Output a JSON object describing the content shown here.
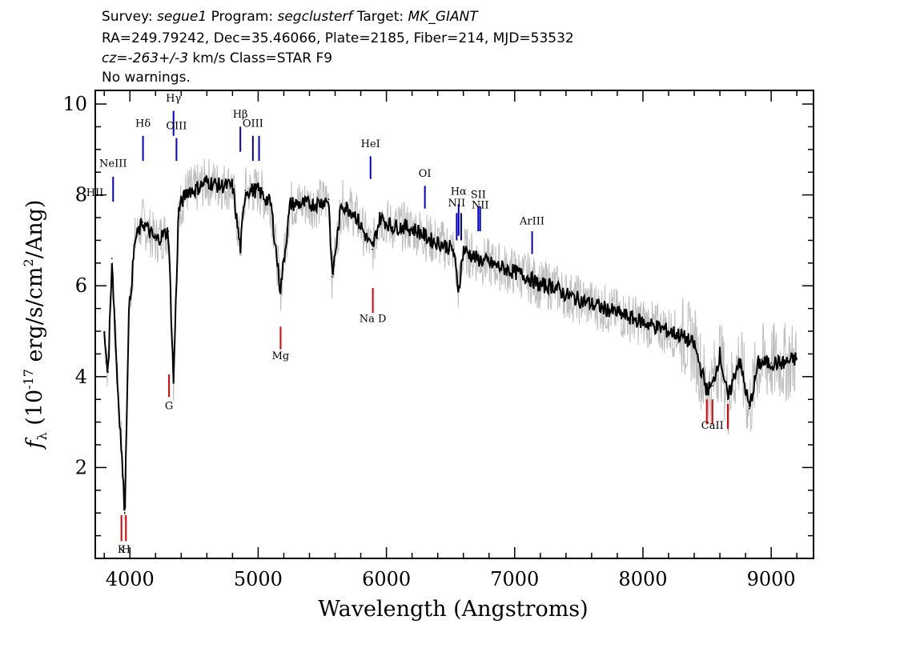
{
  "header": {
    "survey_label": "Survey:",
    "survey": "segue1",
    "program_label": "Program:",
    "program": "segclusterf",
    "target_label": "Target:",
    "target": "MK_GIANT",
    "line2": "RA=249.79242, Dec=35.46066, Plate=2185, Fiber=214, MJD=53532",
    "cz": "cz=-263+/-3",
    "cz_rest": " km/s Class=STAR F9",
    "warnings": "No warnings."
  },
  "colors": {
    "flux": "#000000",
    "noise": "#bebebe",
    "emission": "#0000cc",
    "absorption": "#dd0000"
  },
  "chart_data": {
    "type": "line",
    "xlabel": "Wavelength (Angstroms)",
    "ylabel_parts": [
      "f",
      "λ",
      " (10",
      "-17",
      " erg/s/cm",
      "2",
      "/Ang)"
    ],
    "xlim": [
      3730,
      9330
    ],
    "ylim": [
      0,
      10.3
    ],
    "xticks": [
      4000,
      5000,
      6000,
      7000,
      8000,
      9000
    ],
    "yticks": [
      2,
      4,
      6,
      8,
      10
    ],
    "series": [
      {
        "x": [
          3800,
          3830,
          3860,
          3900,
          3930,
          3960,
          3990,
          4040,
          4100,
          4150,
          4200,
          4250,
          4300,
          4340,
          4380,
          4450,
          4500,
          4600,
          4700,
          4800,
          4861,
          4900,
          5000,
          5100,
          5173,
          5250,
          5350,
          5450,
          5550,
          5577,
          5650,
          5750,
          5890,
          5950,
          6050,
          6150,
          6250,
          6350,
          6450,
          6520,
          6563,
          6600,
          6700,
          6800,
          6900,
          7000,
          7100,
          7200,
          7300,
          7400,
          7500,
          7600,
          7700,
          7800,
          7900,
          8000,
          8100,
          8200,
          8300,
          8400,
          8498,
          8542,
          8600,
          8662,
          8750,
          8830,
          8900,
          9000,
          9100,
          9200
        ],
        "y": [
          4.9,
          4.1,
          6.6,
          4.0,
          2.6,
          1.0,
          5.3,
          7.0,
          7.4,
          7.2,
          7.0,
          7.1,
          7.2,
          3.9,
          7.7,
          8.1,
          8.1,
          8.3,
          8.2,
          8.2,
          6.8,
          8.1,
          8.1,
          7.8,
          5.9,
          7.8,
          7.8,
          7.8,
          7.9,
          6.2,
          7.8,
          7.6,
          6.8,
          7.5,
          7.3,
          7.3,
          7.2,
          7.0,
          6.9,
          6.8,
          5.9,
          6.8,
          6.6,
          6.5,
          6.4,
          6.3,
          6.2,
          6.0,
          6.0,
          5.8,
          5.7,
          5.6,
          5.5,
          5.4,
          5.3,
          5.2,
          5.1,
          5.0,
          4.9,
          4.7,
          3.7,
          3.8,
          4.5,
          3.5,
          4.4,
          3.3,
          4.3,
          4.3,
          4.3,
          4.4
        ]
      }
    ],
    "emission_lines": [
      {
        "label": "HII",
        "wave": 3727,
        "label_y": 7.98,
        "y0": 8.2,
        "y1": 7.3
      },
      {
        "label": "NeIII",
        "wave": 3869,
        "label_y": 8.62,
        "y0": 8.4,
        "y1": 7.85
      },
      {
        "label": "Hδ",
        "wave": 4102,
        "label_y": 9.5,
        "y0": 9.3,
        "y1": 8.75
      },
      {
        "label": "Hγ",
        "wave": 4340,
        "label_y": 10.05,
        "y0": 9.85,
        "y1": 9.3
      },
      {
        "label": "OIII",
        "wave": 4363,
        "label_y": 9.45,
        "y0": 9.25,
        "y1": 8.75
      },
      {
        "label": "Hβ",
        "wave": 4861,
        "label_y": 9.7,
        "y0": 9.5,
        "y1": 8.95
      },
      {
        "label": "OIII",
        "wave": 4959,
        "label_y": 9.5,
        "y0": 9.3,
        "y1": 8.75
      },
      {
        "label": "",
        "wave": 5007,
        "label_y": 9.5,
        "y0": 9.3,
        "y1": 8.75
      },
      {
        "label": "HeI",
        "wave": 5876,
        "label_y": 9.05,
        "y0": 8.85,
        "y1": 8.35
      },
      {
        "label": "OI",
        "wave": 6300,
        "label_y": 8.4,
        "y0": 8.2,
        "y1": 7.7
      },
      {
        "label": "NII",
        "wave": 6548,
        "label_y": 7.75,
        "y0": 7.6,
        "y1": 7.0
      },
      {
        "label": "Hα",
        "wave": 6563,
        "label_y": 8.0,
        "y0": 7.8,
        "y1": 7.1
      },
      {
        "label": "",
        "wave": 6583,
        "label_y": 7.75,
        "y0": 7.6,
        "y1": 7.0
      },
      {
        "label": "SII",
        "wave": 6716,
        "label_y": 7.93,
        "y0": 7.75,
        "y1": 7.2
      },
      {
        "label": "NII",
        "wave": 6731,
        "label_y": 7.7,
        "y0": 7.75,
        "y1": 7.2
      },
      {
        "label": "ArIII",
        "wave": 7136,
        "label_y": 7.35,
        "y0": 7.2,
        "y1": 6.7
      }
    ],
    "absorption_lines": [
      {
        "label": "K",
        "wave": 3934,
        "label_y": 0.12,
        "y0": 0.95,
        "y1": 0.38
      },
      {
        "label": "H",
        "wave": 3969,
        "label_y": 0.12,
        "y0": 0.95,
        "y1": 0.38
      },
      {
        "label": "G",
        "wave": 4305,
        "label_y": 3.28,
        "y0": 4.05,
        "y1": 3.55
      },
      {
        "label": "Mg",
        "wave": 5175,
        "label_y": 4.38,
        "y0": 5.1,
        "y1": 4.6
      },
      {
        "label": "Na D",
        "wave": 5894,
        "label_y": 5.2,
        "y0": 5.95,
        "y1": 5.4
      },
      {
        "label": "",
        "wave": 8498,
        "label_y": 2.85,
        "y0": 3.5,
        "y1": 2.95
      },
      {
        "label": "CaII",
        "wave": 8542,
        "label_y": 2.85,
        "y0": 3.5,
        "y1": 2.95
      },
      {
        "label": "",
        "wave": 8662,
        "label_y": 2.85,
        "y0": 3.4,
        "y1": 2.85
      }
    ]
  }
}
